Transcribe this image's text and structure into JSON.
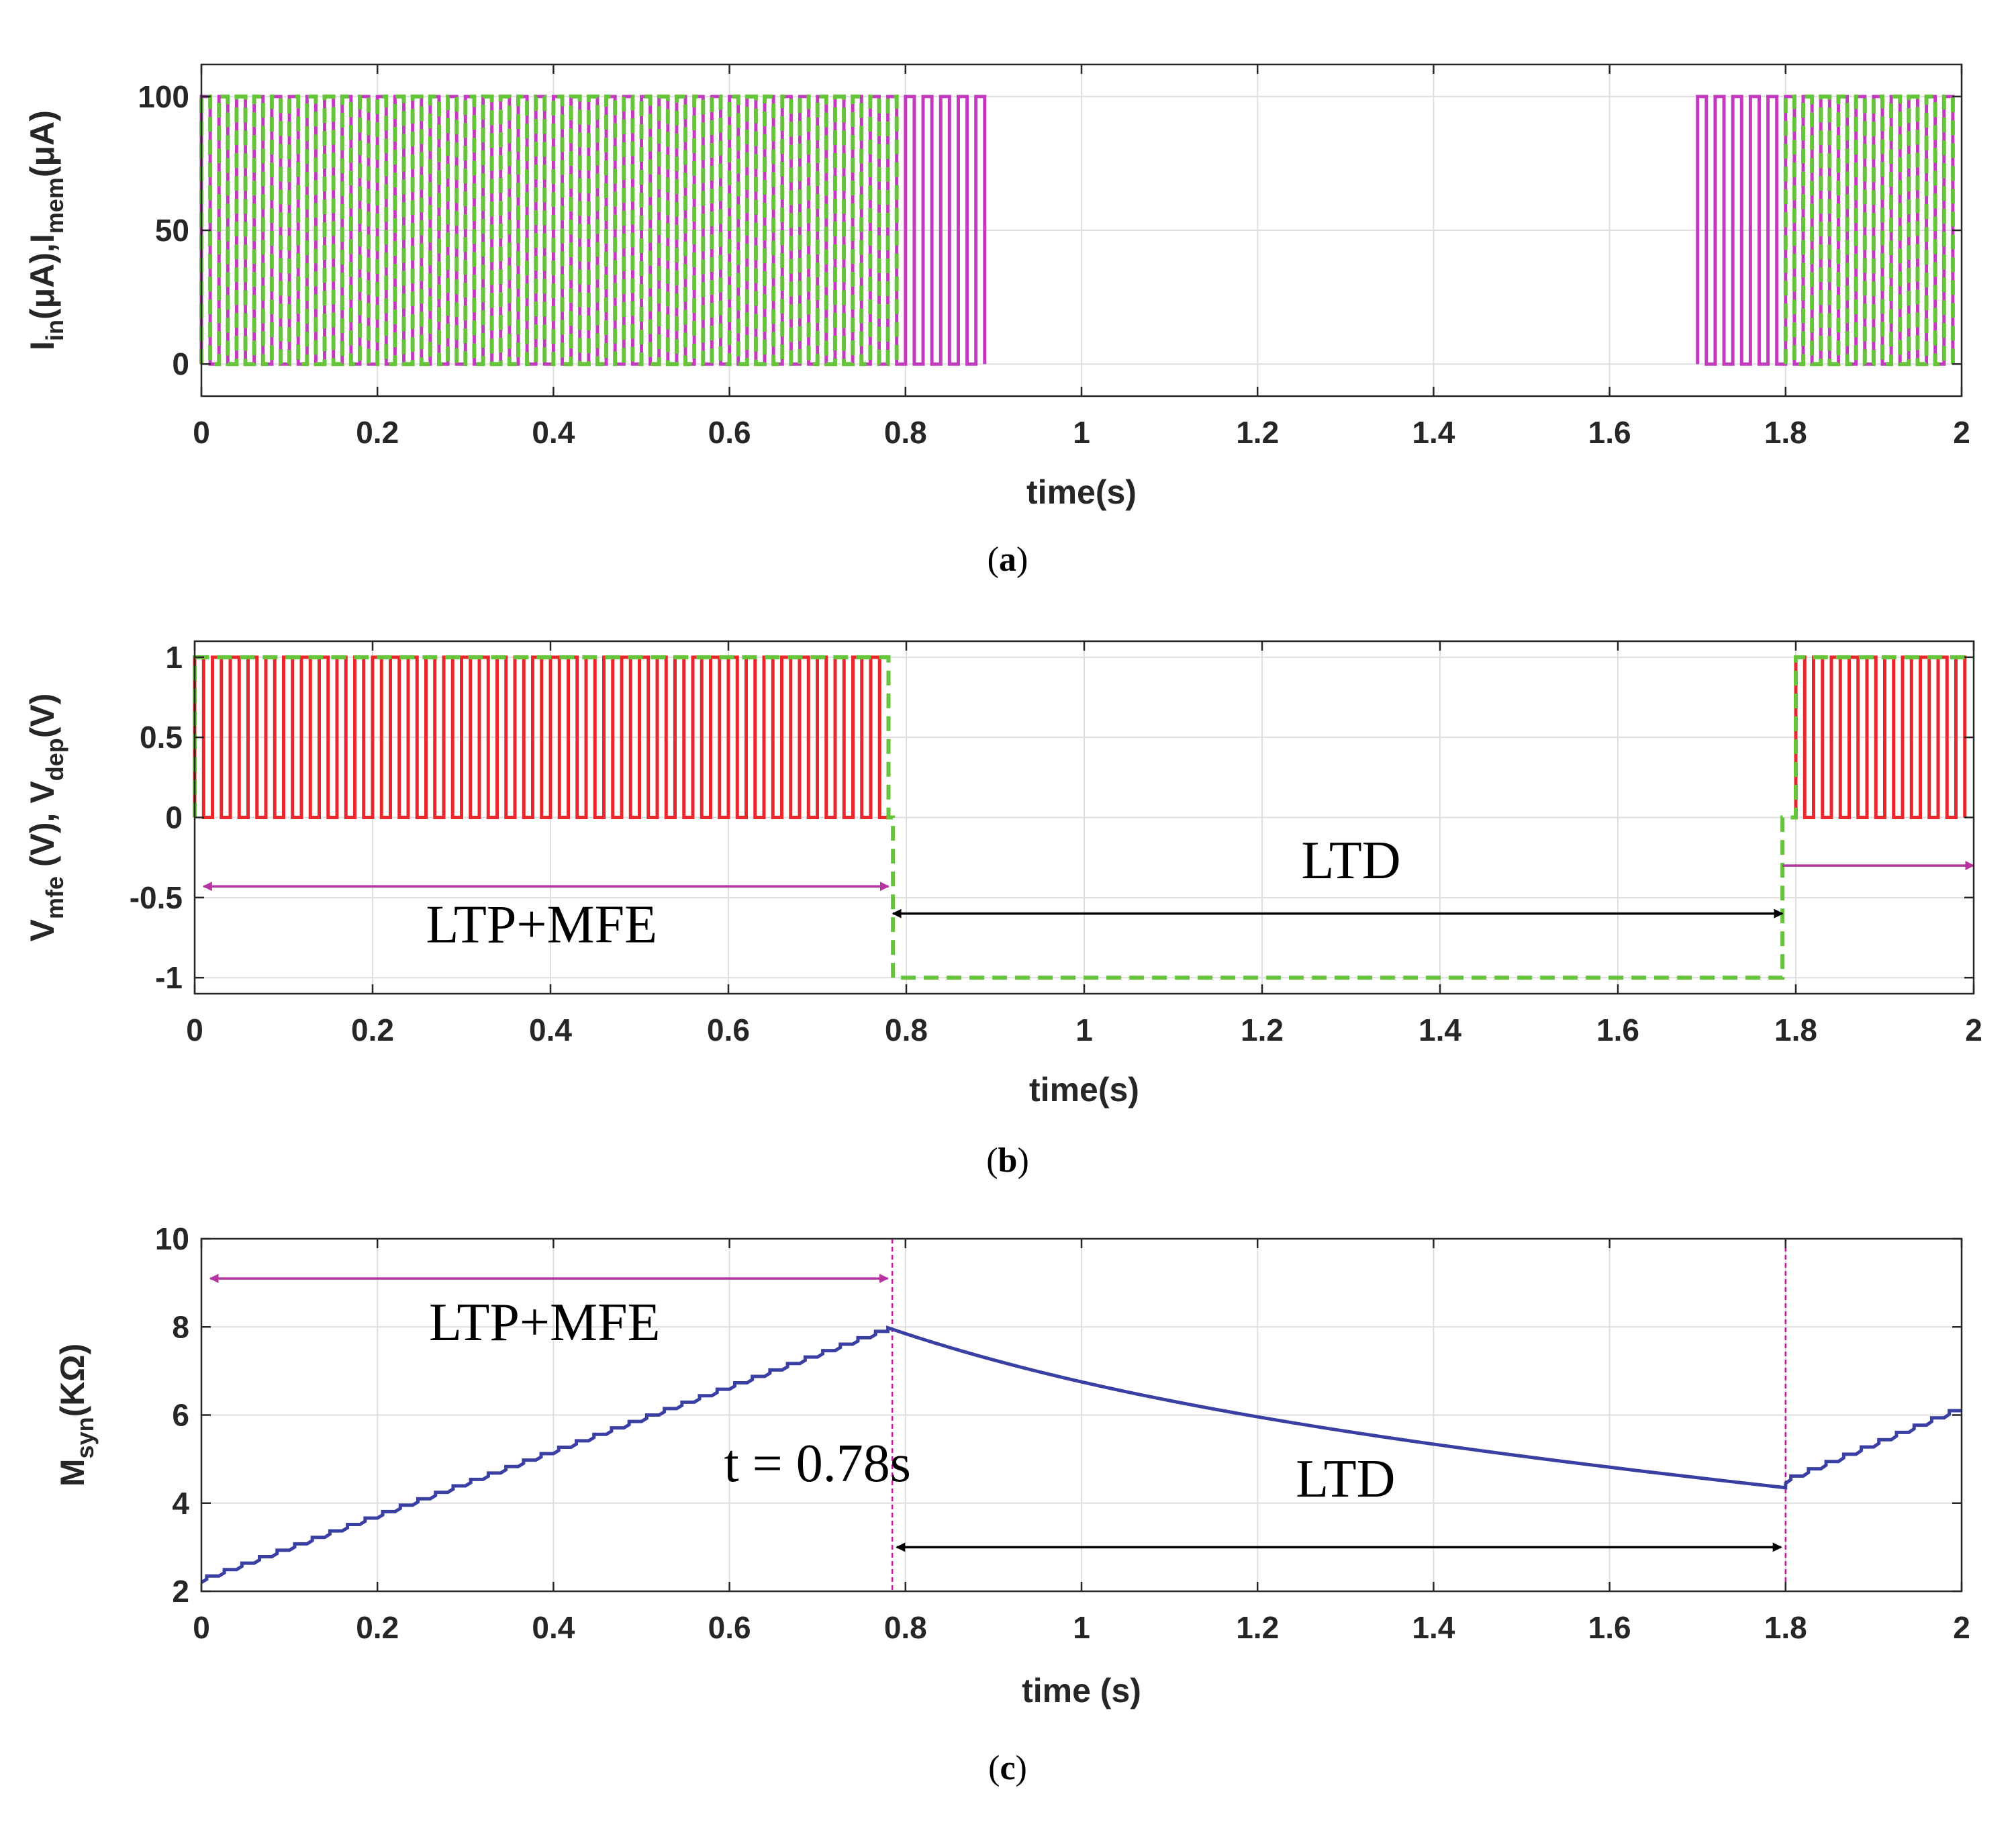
{
  "chart_data": [
    {
      "id": "a",
      "type": "line",
      "caption_letter": "a",
      "xlabel": "time(s)",
      "ylabel": {
        "parts": [
          [
            "I",
            ""
          ],
          [
            "in",
            "sub"
          ],
          [
            "(μA),I",
            ""
          ],
          [
            "mem",
            "sub"
          ],
          [
            "(μA)",
            ""
          ]
        ]
      },
      "xlim": [
        0,
        2
      ],
      "ylim": [
        -12,
        112
      ],
      "xticks": [
        0,
        0.2,
        0.4,
        0.6,
        0.8,
        1,
        1.2,
        1.4,
        1.6,
        1.8,
        2
      ],
      "xtick_labels": [
        "0",
        "0.2",
        "0.4",
        "0.6",
        "0.8",
        "1",
        "1.2",
        "1.4",
        "1.6",
        "1.8",
        "2"
      ],
      "yticks": [
        0,
        50,
        100
      ],
      "ytick_labels": [
        "0",
        "50",
        "100"
      ],
      "grid": true,
      "series": [
        {
          "name": "I_in",
          "color": "#c23bbf",
          "style": "solid",
          "pulse_amplitude": 100,
          "pulse_period": 0.02,
          "intervals": [
            [
              0,
              0.89
            ],
            [
              1.7,
              1.99
            ]
          ]
        },
        {
          "name": "I_mem",
          "color": "#66c43a",
          "style": "dashed",
          "pulse_amplitude": 100,
          "pulse_period": 0.02,
          "intervals": [
            [
              0,
              0.79
            ],
            [
              1.8,
              1.99
            ]
          ]
        }
      ]
    },
    {
      "id": "b",
      "type": "line",
      "caption_letter": "b",
      "xlabel": "time(s)",
      "ylabel": {
        "parts": [
          [
            "V",
            ""
          ],
          [
            "mfe",
            "sub"
          ],
          [
            " (V), V",
            ""
          ],
          [
            "dep",
            "sub"
          ],
          [
            "(V)",
            ""
          ]
        ]
      },
      "xlim": [
        0,
        2
      ],
      "ylim": [
        -1.1,
        1.1
      ],
      "xticks": [
        0,
        0.2,
        0.4,
        0.6,
        0.8,
        1,
        1.2,
        1.4,
        1.6,
        1.8,
        2
      ],
      "xtick_labels": [
        "0",
        "0.2",
        "0.4",
        "0.6",
        "0.8",
        "1",
        "1.2",
        "1.4",
        "1.6",
        "1.8",
        "2"
      ],
      "yticks": [
        -1,
        -0.5,
        0,
        0.5,
        1
      ],
      "ytick_labels": [
        "-1",
        "-0.5",
        "0",
        "0.5",
        "1"
      ],
      "grid": true,
      "series": [
        {
          "name": "V_mfe",
          "color": "#e8262b",
          "style": "solid",
          "pulse_amplitude": 1,
          "pulse_period": 0.02,
          "intervals": [
            [
              0,
              0.78
            ],
            [
              1.8,
              1.99
            ]
          ]
        },
        {
          "name": "V_dep",
          "color": "#66c43a",
          "style": "dashed",
          "points": [
            [
              0,
              0
            ],
            [
              0,
              1
            ],
            [
              0.78,
              1
            ],
            [
              0.78,
              0
            ],
            [
              0.785,
              0
            ],
            [
              0.785,
              -1
            ],
            [
              1.785,
              -1
            ],
            [
              1.785,
              0
            ],
            [
              1.8,
              0
            ],
            [
              1.8,
              1
            ],
            [
              2,
              1
            ]
          ]
        }
      ],
      "annotations": [
        {
          "text": "LTP+MFE",
          "x": 0.39,
          "y": -0.78
        },
        {
          "text": "LTD",
          "x": 1.3,
          "y": -0.38
        }
      ],
      "arrows": [
        {
          "x1": 0.01,
          "x2": 0.78,
          "y": -0.43,
          "color": "#b5349f",
          "heads": "both"
        },
        {
          "x1": 0.785,
          "x2": 1.785,
          "y": -0.6,
          "color": "#000000",
          "heads": "both"
        },
        {
          "x1": 1.785,
          "x2": 2.0,
          "y": -0.3,
          "color": "#b5349f",
          "heads": "end"
        }
      ]
    },
    {
      "id": "c",
      "type": "line",
      "caption_letter": "c",
      "xlabel": "time (s)",
      "ylabel": {
        "parts": [
          [
            "M",
            ""
          ],
          [
            "syn",
            "sub"
          ],
          [
            "(KΩ)",
            ""
          ]
        ]
      },
      "xlim": [
        0,
        2
      ],
      "ylim": [
        2,
        10
      ],
      "xticks": [
        0,
        0.2,
        0.4,
        0.6,
        0.8,
        1,
        1.2,
        1.4,
        1.6,
        1.8,
        2
      ],
      "xtick_labels": [
        "0",
        "0.2",
        "0.4",
        "0.6",
        "0.8",
        "1",
        "1.2",
        "1.4",
        "1.6",
        "1.8",
        "2"
      ],
      "yticks": [
        2,
        4,
        6,
        8,
        10
      ],
      "ytick_labels": [
        "2",
        "4",
        "6",
        "8",
        "10"
      ],
      "grid": true,
      "series": [
        {
          "name": "M_syn",
          "color": "#3a3fa3",
          "style": "solid",
          "segments": [
            {
              "kind": "staircase",
              "t0": 0,
              "t1": 0.78,
              "v0": 2.2,
              "v1": 7.9,
              "step": 0.02
            },
            {
              "kind": "decay",
              "t0": 0.78,
              "t1": 1.8,
              "v0": 7.98,
              "v1": 4.35
            },
            {
              "kind": "staircase",
              "t0": 1.8,
              "t1": 2.0,
              "v0": 4.45,
              "v1": 6.1,
              "step": 0.02
            }
          ]
        }
      ],
      "vlines": [
        {
          "x": 0.785,
          "color": "#c2189a"
        },
        {
          "x": 1.8,
          "color": "#c2189a"
        }
      ],
      "annotations": [
        {
          "text": "LTP+MFE",
          "x": 0.39,
          "y": 7.7
        },
        {
          "text": "t = 0.78s",
          "x": 0.7,
          "y": 4.5
        },
        {
          "text": "LTD",
          "x": 1.3,
          "y": 4.15
        }
      ],
      "arrows": [
        {
          "x1": 0.01,
          "x2": 0.78,
          "y": 9.1,
          "color": "#b5349f",
          "heads": "both"
        },
        {
          "x1": 0.79,
          "x2": 1.795,
          "y": 3.0,
          "color": "#000000",
          "heads": "both"
        }
      ]
    }
  ]
}
